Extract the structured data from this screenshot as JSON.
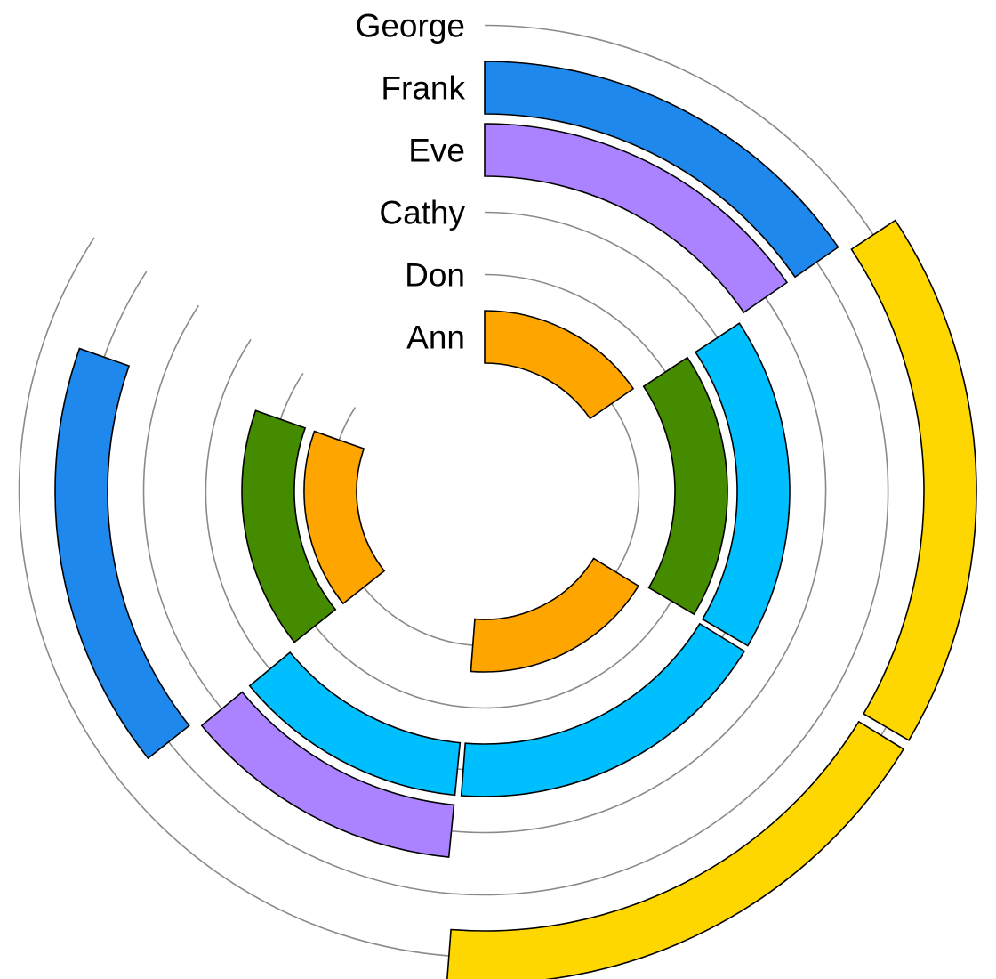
{
  "chart_data": {
    "type": "radial-bar",
    "title": "",
    "start_angle_deg": 0,
    "direction": "clockwise",
    "categories": [
      "Ann",
      "Don",
      "Cathy",
      "Eve",
      "Frank",
      "George"
    ],
    "rings": [
      {
        "label": "Ann",
        "segments": [
          {
            "from_deg": 0,
            "to_deg": 56,
            "color": "#ffa500"
          },
          {
            "from_deg": 121,
            "to_deg": 185,
            "color": "#ffa500"
          },
          {
            "from_deg": 231,
            "to_deg": 290,
            "color": "#ffa500"
          }
        ]
      },
      {
        "label": "Don",
        "segments": [
          {
            "from_deg": 56,
            "to_deg": 121,
            "color": "#458b00"
          },
          {
            "from_deg": 231,
            "to_deg": 290,
            "color": "#458b00"
          }
        ]
      },
      {
        "label": "Cathy",
        "segments": [
          {
            "from_deg": 56,
            "to_deg": 121,
            "color": "#00bfff"
          },
          {
            "from_deg": 121,
            "to_deg": 185,
            "color": "#00bfff"
          },
          {
            "from_deg": 185,
            "to_deg": 231,
            "color": "#00bfff"
          }
        ]
      },
      {
        "label": "Eve",
        "segments": [
          {
            "from_deg": 0,
            "to_deg": 56,
            "color": "#ab82ff"
          },
          {
            "from_deg": 185,
            "to_deg": 231,
            "color": "#ab82ff"
          }
        ]
      },
      {
        "label": "Frank",
        "segments": [
          {
            "from_deg": 0,
            "to_deg": 56,
            "color": "#1e88ed"
          },
          {
            "from_deg": 231,
            "to_deg": 290,
            "color": "#1e88ed"
          }
        ]
      },
      {
        "label": "George",
        "segments": [
          {
            "from_deg": 56,
            "to_deg": 121,
            "color": "#ffd700"
          },
          {
            "from_deg": 121,
            "to_deg": 185,
            "color": "#ffd700"
          }
        ]
      }
    ]
  }
}
